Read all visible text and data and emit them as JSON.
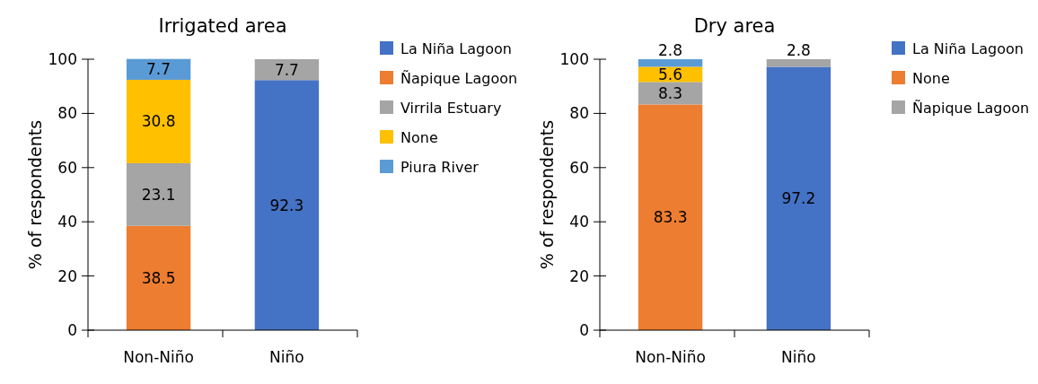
{
  "chart_data": [
    {
      "type": "bar",
      "title": "Irrigated area",
      "ylabel": "% of respondents",
      "categories": [
        "Non-Niño",
        "Niño"
      ],
      "stacked": true,
      "ylim": [
        0,
        100
      ],
      "yticks": [
        0,
        20,
        40,
        60,
        80,
        100
      ],
      "grid": false,
      "legend": "right",
      "data_labels": true,
      "series": [
        {
          "name": "La Niña Lagoon",
          "color": "#4472c4",
          "values": [
            null,
            92.3
          ]
        },
        {
          "name": "Ñapique Lagoon",
          "color": "#ed7d31",
          "values": [
            38.5,
            null
          ]
        },
        {
          "name": "Virrila Estuary",
          "color": "#a5a5a5",
          "values": [
            23.1,
            7.7
          ]
        },
        {
          "name": "None",
          "color": "#ffc000",
          "values": [
            30.8,
            null
          ]
        },
        {
          "name": "Piura River",
          "color": "#5b9bd5",
          "values": [
            7.7,
            null
          ]
        }
      ]
    },
    {
      "type": "bar",
      "title": "Dry area",
      "ylabel": "% of respondents",
      "categories": [
        "Non-Niño",
        "Niño"
      ],
      "stacked": true,
      "ylim": [
        0,
        100
      ],
      "yticks": [
        0,
        20,
        40,
        60,
        80,
        100
      ],
      "grid": false,
      "legend": "right",
      "data_labels": true,
      "series": [
        {
          "name": "La Niña Lagoon",
          "color": "#4472c4",
          "values": [
            null,
            97.2
          ]
        },
        {
          "name": "None",
          "color": "#ed7d31",
          "values": [
            83.3,
            null
          ]
        },
        {
          "name": "Ñapique Lagoon",
          "color": "#a5a5a5",
          "values": [
            8.3,
            2.8
          ]
        },
        {
          "color": "#ffc000",
          "values": [
            5.6,
            null
          ]
        },
        {
          "color": "#5b9bd5",
          "values": [
            2.8,
            null
          ]
        }
      ]
    }
  ]
}
